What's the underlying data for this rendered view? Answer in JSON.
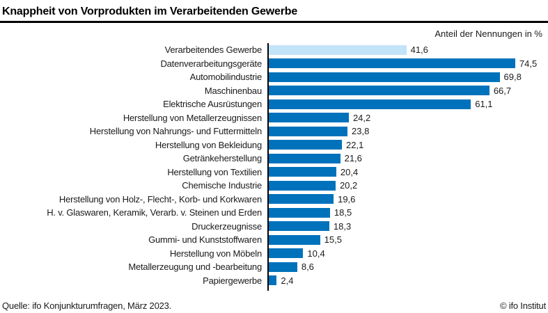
{
  "header": {
    "title": "Knappheit von Vorprodukten im Verarbeitenden Gewerbe",
    "unit_label": "Anteil der Nennungen in %"
  },
  "chart_data": {
    "type": "bar",
    "orientation": "horizontal",
    "title": "Knappheit von Vorprodukten im Verarbeitenden Gewerbe",
    "xlabel": "Anteil der Nennungen in %",
    "ylabel": "",
    "xlim": [
      0,
      80
    ],
    "grid": false,
    "legend": false,
    "highlight_index": 0,
    "categories": [
      "Verarbeitendes Gewerbe",
      "Datenverarbeitungsgeräte",
      "Automobilindustrie",
      "Maschinenbau",
      "Elektrische Ausrüstungen",
      "Herstellung von Metallerzeugnissen",
      "Herstellung von Nahrungs- und Futtermitteln",
      "Herstellung von Bekleidung",
      "Getränkeherstellung",
      "Herstellung von Textilien",
      "Chemische Industrie",
      "Herstellung von Holz-, Flecht-, Korb- und Korkwaren",
      "H. v. Glaswaren, Keramik, Verarb. v. Steinen und Erden",
      "Druckerzeugnisse",
      "Gummi- und Kunststoffwaren",
      "Herstellung von Möbeln",
      "Metallerzeugung und -bearbeitung",
      "Papiergewerbe"
    ],
    "values": [
      41.6,
      74.5,
      69.8,
      66.7,
      61.1,
      24.2,
      23.8,
      22.1,
      21.6,
      20.4,
      20.2,
      19.6,
      18.5,
      18.3,
      15.5,
      10.4,
      8.6,
      2.4
    ],
    "value_labels": [
      "41,6",
      "74,5",
      "69,8",
      "66,7",
      "61,1",
      "24,2",
      "23,8",
      "22,1",
      "21,6",
      "20,4",
      "20,2",
      "19,6",
      "18,5",
      "18,3",
      "15,5",
      "10,4",
      "8,6",
      "2,4"
    ],
    "colors": {
      "bar": "#0072BC",
      "highlight_bar": "#C3E3F9",
      "axis": "#000000"
    }
  },
  "footer": {
    "source": "Quelle: ifo Konjunkturumfragen, März 2023.",
    "copyright": "© ifo Institut"
  }
}
